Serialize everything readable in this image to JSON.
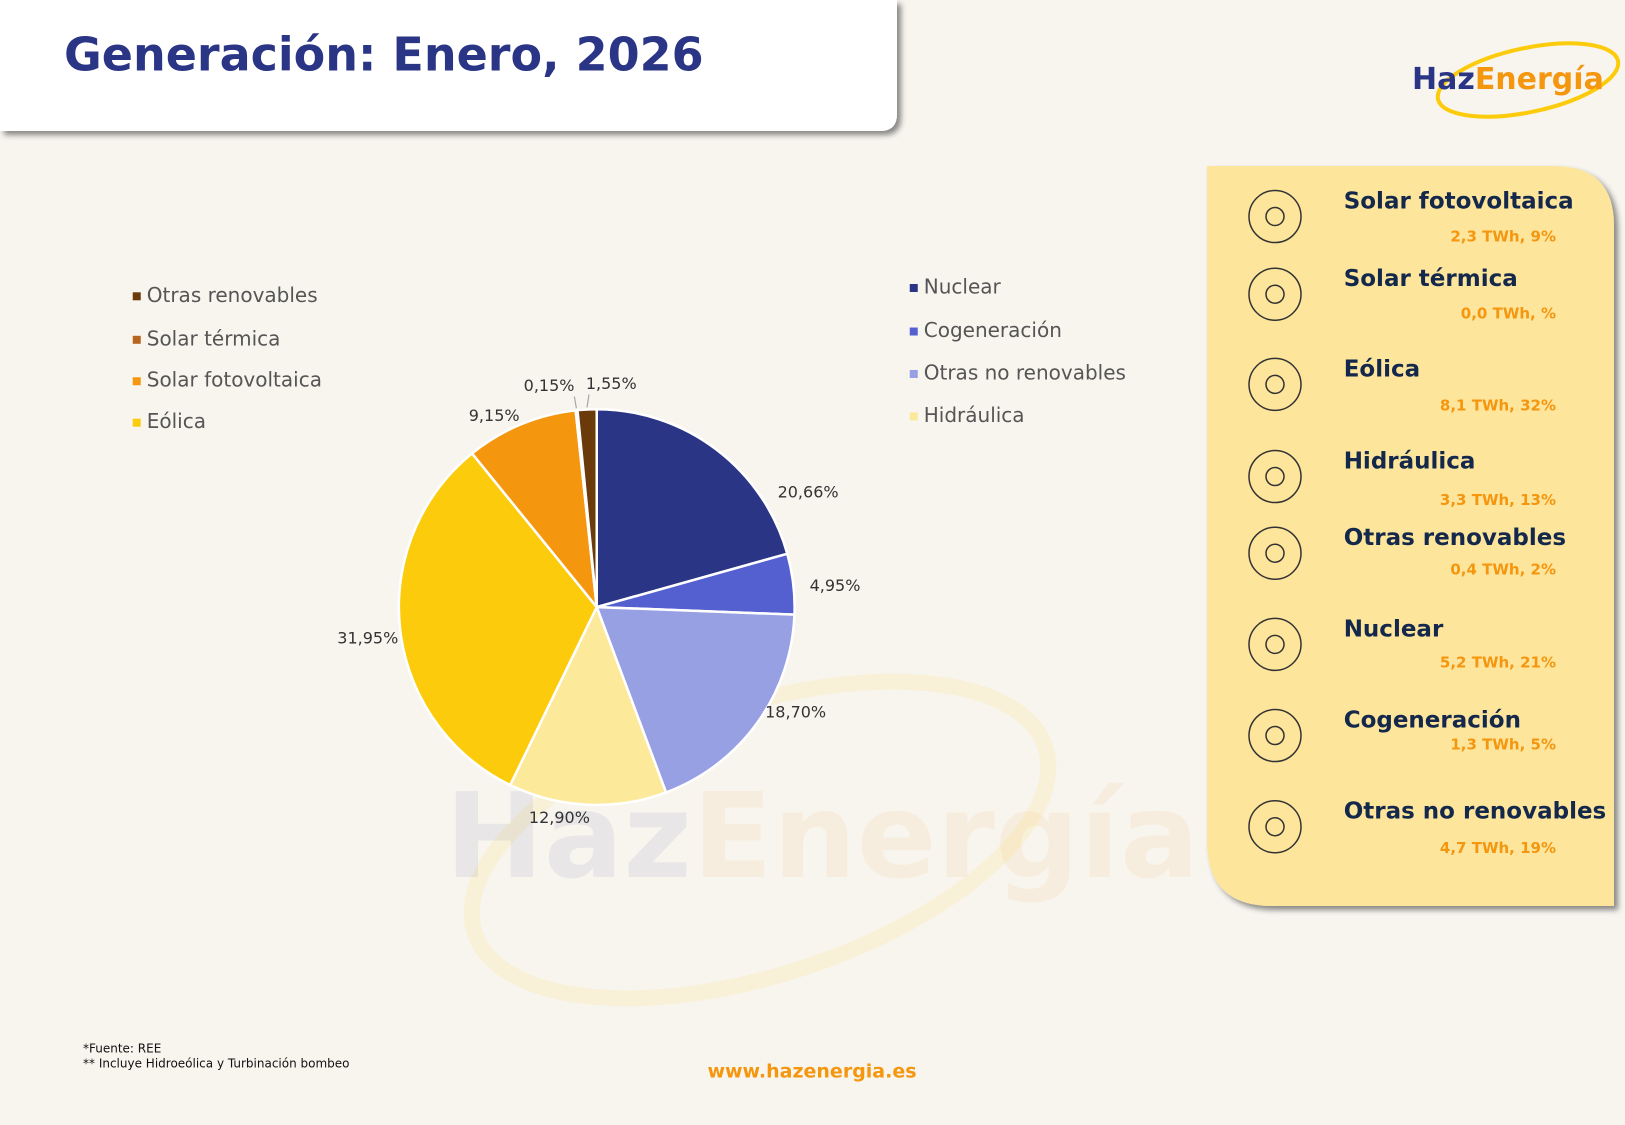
{
  "header": {
    "title": "Generación: Enero, 2026"
  },
  "logo": {
    "part1": "Haz",
    "part2": "Energía"
  },
  "chart_data": {
    "type": "pie",
    "categories": [
      "Nuclear",
      "Cogeneración",
      "Otras no renovables",
      "Hidráulica",
      "Eólica",
      "Solar fotovoltaica",
      "Solar térmica",
      "Otras renovables"
    ],
    "values": [
      20.66,
      4.95,
      18.7,
      12.9,
      31.95,
      9.15,
      0.15,
      1.55
    ],
    "value_labels": [
      "20,66%",
      "4,95%",
      "18,70%",
      "12,90%",
      "31,95%",
      "9,15%",
      "0,15%",
      "1,55%"
    ],
    "colors": [
      "#2b3585",
      "#5560d0",
      "#98a0e4",
      "#fde99a",
      "#fccb0b",
      "#f5960f",
      "#b5651d",
      "#6b3a0a"
    ]
  },
  "panel": {
    "items": [
      {
        "title": "Solar fotovoltaica",
        "detail": "2,3 TWh, 9%"
      },
      {
        "title": "Solar térmica",
        "detail": "0,0 TWh, %"
      },
      {
        "title": "Eólica",
        "detail": "8,1 TWh, 32%"
      },
      {
        "title": "Hidráulica",
        "detail": "3,3 TWh, 13%"
      },
      {
        "title": "Otras renovables",
        "detail": "0,4 TWh, 2%"
      },
      {
        "title": "Nuclear",
        "detail": "5,2 TWh, 21%"
      },
      {
        "title": "Cogeneración",
        "detail": "1,3 TWh, 5%"
      },
      {
        "title": "Otras no renovables",
        "detail": "4,7 TWh, 19%"
      }
    ]
  },
  "footer": {
    "notes": [
      "*Fuente: REE",
      "** Incluye Hidroeólica y Turbinación bombeo"
    ],
    "url": "www.hazenergia.es"
  }
}
